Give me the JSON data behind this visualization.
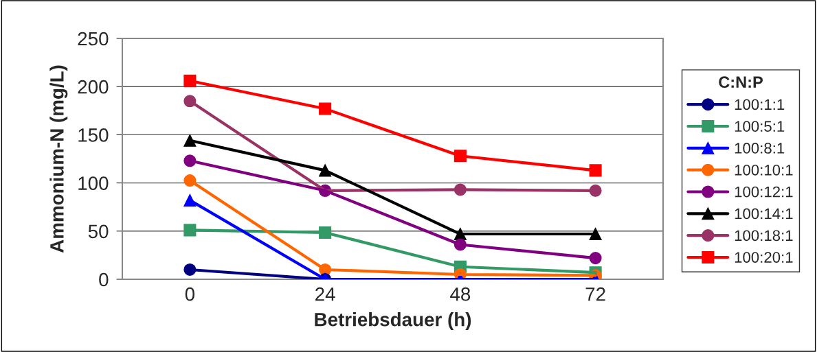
{
  "chart_data": {
    "type": "line",
    "xlabel": "Betriebsdauer (h)",
    "ylabel": "Ammonium-N (mg/L)",
    "legend_title": "C:N:P",
    "categories": [
      "0",
      "24",
      "48",
      "72"
    ],
    "series": [
      {
        "name": "100:1:1",
        "color": "#000080",
        "marker": "circle",
        "values": [
          10,
          0,
          null,
          null
        ]
      },
      {
        "name": "100:5:1",
        "color": "#339966",
        "marker": "square",
        "values": [
          51,
          48.5,
          13,
          7
        ]
      },
      {
        "name": "100:8:1",
        "color": "#0000ff",
        "marker": "triangle",
        "values": [
          82,
          0,
          0,
          0
        ]
      },
      {
        "name": "100:10:1",
        "color": "#ff6600",
        "marker": "circle",
        "values": [
          102.5,
          10,
          5,
          4
        ]
      },
      {
        "name": "100:12:1",
        "color": "#800080",
        "marker": "circle",
        "values": [
          123,
          92,
          36,
          22
        ]
      },
      {
        "name": "100:14:1",
        "color": "#000000",
        "marker": "triangle",
        "values": [
          144,
          113,
          47,
          47
        ]
      },
      {
        "name": "100:18:1",
        "color": "#993366",
        "marker": "circle",
        "values": [
          185,
          92,
          93,
          92
        ]
      },
      {
        "name": "100:20:1",
        "color": "#ff0000",
        "marker": "square",
        "values": [
          206,
          177,
          128,
          113
        ]
      }
    ],
    "ylim": [
      0,
      250
    ],
    "yticks": [
      0,
      50,
      100,
      150,
      200,
      250
    ],
    "grid": "y",
    "legend": "right",
    "line_style": "solid"
  }
}
